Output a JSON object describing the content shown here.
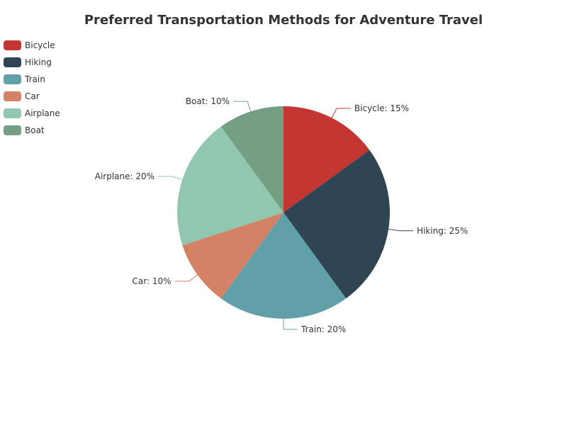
{
  "chart_data": {
    "type": "pie",
    "title": "Preferred Transportation Methods for Adventure Travel",
    "legend_position": "top-left",
    "slices": [
      {
        "name": "Bicycle",
        "value": 15,
        "label": "Bicycle: 15%",
        "color": "#c23531"
      },
      {
        "name": "Hiking",
        "value": 25,
        "label": "Hiking: 25%",
        "color": "#2f4554"
      },
      {
        "name": "Train",
        "value": 20,
        "label": "Train: 20%",
        "color": "#61a0a8"
      },
      {
        "name": "Car",
        "value": 10,
        "label": "Car: 10%",
        "color": "#d48265"
      },
      {
        "name": "Airplane",
        "value": 20,
        "label": "Airplane: 20%",
        "color": "#91c7ae"
      },
      {
        "name": "Boat",
        "value": 10,
        "label": "Boat: 10%",
        "color": "#749f83"
      }
    ]
  }
}
